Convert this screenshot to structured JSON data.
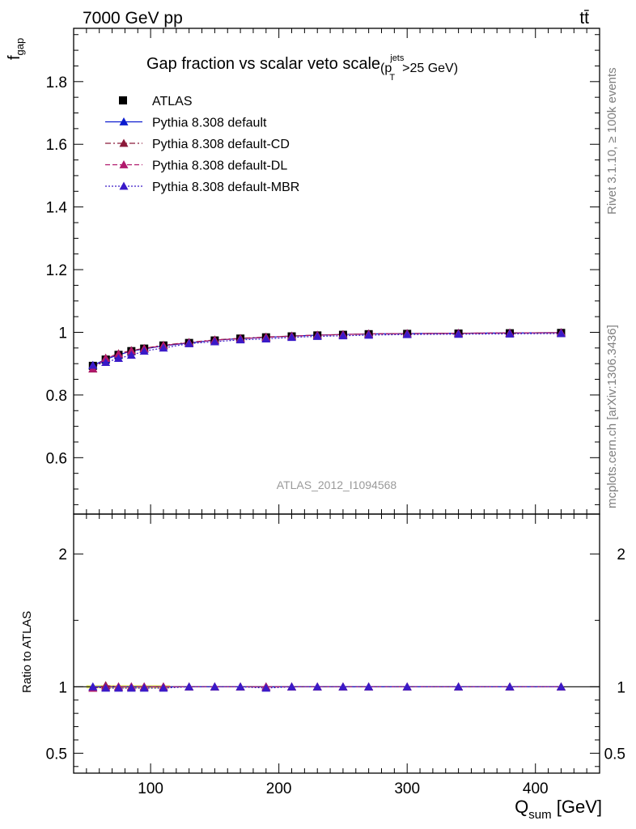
{
  "header": {
    "energy_label": "7000 GeV pp",
    "process_label": "tt̄"
  },
  "side_labels": {
    "rivet": "Rivet 3.1.10, ≥ 100k events",
    "mcplots": "mcplots.cern.ch [arXiv:1306.3436]"
  },
  "watermark": "ATLAS_2012_I1094568",
  "chart_data": {
    "type": "scatter",
    "title_main": "Gap fraction vs scalar veto scale",
    "title_sub": "(p",
    "title_sup": "jets",
    "title_subscript": "T",
    "title_tail": ">25 GeV)",
    "ylabel_main": "f",
    "ylabel_sub": "gap",
    "xlabel_main": "Q",
    "xlabel_sub": "sum",
    "xlabel_unit": " [GeV]",
    "ratio_ylabel": "Ratio to ATLAS",
    "xlim": [
      40,
      450
    ],
    "ylim": [
      0.42,
      1.97
    ],
    "ratio_ylim": [
      0.35,
      2.3
    ],
    "x_ticks": [
      100,
      200,
      300,
      400
    ],
    "y_ticks": [
      0.6,
      0.8,
      1,
      1.2,
      1.4,
      1.6,
      1.8
    ],
    "y_tick_labels": [
      "0.6",
      "0.8",
      "1",
      "1.2",
      "1.4",
      "1.6",
      "1.8"
    ],
    "ratio_ticks": [
      0.5,
      1,
      2
    ],
    "ratio_tick_labels": [
      "0.5",
      "1",
      "2"
    ],
    "x": [
      55,
      65,
      75,
      85,
      95,
      110,
      130,
      150,
      170,
      190,
      210,
      230,
      250,
      270,
      300,
      340,
      380,
      420
    ],
    "reference": {
      "name": "ATLAS",
      "marker": "square",
      "color": "#000000",
      "values": [
        0.893,
        0.913,
        0.928,
        0.94,
        0.948,
        0.958,
        0.966,
        0.974,
        0.98,
        0.984,
        0.987,
        0.99,
        0.992,
        0.994,
        0.995,
        0.996,
        0.997,
        0.998
      ]
    },
    "series": [
      {
        "name": "Pythia 8.308 default",
        "color": "#0b1bcf",
        "line": "solid",
        "values": [
          0.894,
          0.914,
          0.928,
          0.94,
          0.947,
          0.957,
          0.966,
          0.975,
          0.98,
          0.984,
          0.988,
          0.991,
          0.993,
          0.995,
          0.996,
          0.997,
          0.998,
          0.999
        ],
        "ratio": [
          1.0,
          1.0,
          1.0,
          1.0,
          1.0,
          1.0,
          1.0,
          1.0,
          1.0,
          1.0,
          1.0,
          1.0,
          1.0,
          1.0,
          1.0,
          1.0,
          1.0,
          1.0
        ]
      },
      {
        "name": "Pythia 8.308 default-CD",
        "color": "#8b1a3a",
        "line": "dashdot",
        "values": [
          0.883,
          0.918,
          0.932,
          0.942,
          0.949,
          0.959,
          0.968,
          0.976,
          0.981,
          0.985,
          0.988,
          0.991,
          0.993,
          0.995,
          0.996,
          0.997,
          0.998,
          0.999
        ],
        "ratio": [
          0.99,
          1.01,
          1.0,
          1.0,
          1.0,
          1.0,
          1.0,
          1.0,
          1.0,
          1.0,
          1.0,
          1.0,
          1.0,
          1.0,
          1.0,
          1.0,
          1.0,
          1.0
        ]
      },
      {
        "name": "Pythia 8.308 default-DL",
        "color": "#b0186c",
        "line": "dashed",
        "values": [
          0.884,
          0.917,
          0.931,
          0.941,
          0.948,
          0.958,
          0.967,
          0.975,
          0.98,
          0.984,
          0.988,
          0.991,
          0.993,
          0.995,
          0.996,
          0.997,
          0.998,
          0.999
        ],
        "ratio": [
          0.99,
          1.0,
          1.0,
          1.0,
          1.0,
          1.0,
          1.0,
          1.0,
          1.0,
          1.0,
          1.0,
          1.0,
          1.0,
          1.0,
          1.0,
          1.0,
          1.0,
          1.0
        ]
      },
      {
        "name": "Pythia 8.308 default-MBR",
        "color": "#3a1ac8",
        "line": "dotted",
        "values": [
          0.895,
          0.904,
          0.917,
          0.927,
          0.94,
          0.95,
          0.964,
          0.97,
          0.976,
          0.979,
          0.984,
          0.987,
          0.989,
          0.991,
          0.993,
          0.994,
          0.995,
          0.996
        ],
        "ratio": [
          1.0,
          0.99,
          0.99,
          0.99,
          0.99,
          0.99,
          1.0,
          1.0,
          1.0,
          0.99,
          1.0,
          1.0,
          1.0,
          1.0,
          1.0,
          1.0,
          1.0,
          1.0
        ]
      }
    ],
    "legend_position": "top-left",
    "grid": false,
    "log_scale": false
  }
}
